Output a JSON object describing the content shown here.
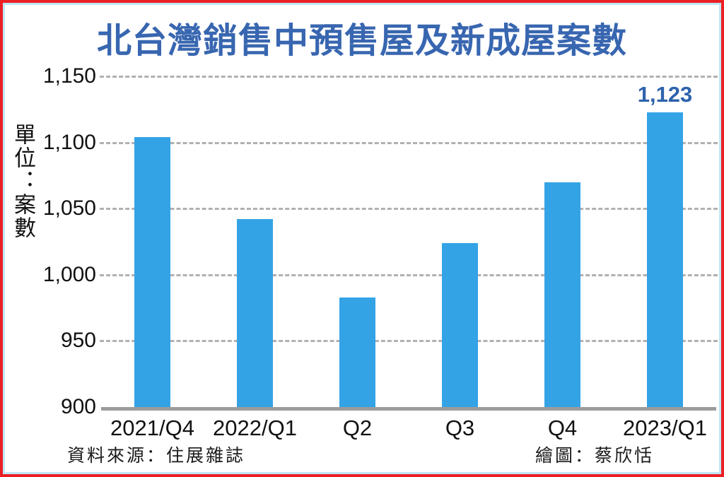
{
  "frame": {
    "border_color": "#ec2024",
    "inner_border_color": "#bfe7f4",
    "background": "#ffffff"
  },
  "title_color": "#3866b0",
  "footer": {
    "source": "資料來源：住展雜誌",
    "credit": "繪圖：蔡欣恬"
  },
  "chart_data": {
    "type": "bar",
    "title": "北台灣銷售中預售屋及新成屋案數",
    "unit_label": "單位：案數",
    "xlabel": "",
    "ylabel": "案數",
    "categories": [
      "2021/Q4",
      "2022/Q1",
      "Q2",
      "Q3",
      "Q4",
      "2023/Q1"
    ],
    "values": [
      1104,
      1042,
      983,
      1024,
      1070,
      1123
    ],
    "data_labels": [
      null,
      null,
      null,
      null,
      null,
      "1,123"
    ],
    "ylim": [
      900,
      1150
    ],
    "yticks": [
      900,
      950,
      1000,
      1050,
      1100,
      1150
    ],
    "ytick_labels": [
      "900",
      "950",
      "1,000",
      "1,050",
      "1,100",
      "1,150"
    ],
    "bar_color": "#34a3e6",
    "data_label_color": "#2e62ac",
    "grid": "horizontal dashed",
    "grid_color": "#b3b0b0",
    "baseline_color": "#9c9c9c",
    "legend": "none"
  }
}
